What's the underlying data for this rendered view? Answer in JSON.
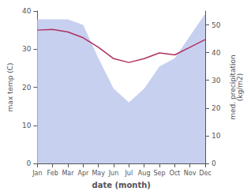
{
  "chart_data": {
    "type": "line",
    "categories": [
      "Jan",
      "Feb",
      "Mar",
      "Apr",
      "May",
      "Jun",
      "Jul",
      "Aug",
      "Sep",
      "Oct",
      "Nov",
      "Dec"
    ],
    "series": [
      {
        "type": "area",
        "axis": "y2",
        "color": "#c8d0f0",
        "values": [
          52,
          52,
          52,
          50,
          38,
          27,
          22,
          27,
          35,
          38,
          46,
          54
        ]
      },
      {
        "type": "line",
        "color": "#b03060",
        "values": [
          35.0,
          35.2,
          34.5,
          33.0,
          30.5,
          27.5,
          26.5,
          27.5,
          29.0,
          28.5,
          30.5,
          32.5
        ]
      }
    ],
    "xlabel": "date (month)",
    "ylabel": "max temp (C)",
    "y2label": "med. precipitation\n(kg/m2)",
    "ylim": [
      0,
      40
    ],
    "yticks": [
      0,
      10,
      20,
      30,
      40
    ],
    "y2lim": [
      0,
      55
    ],
    "y2ticks": [
      0,
      10,
      20,
      30,
      40,
      50
    ],
    "grid": false
  }
}
